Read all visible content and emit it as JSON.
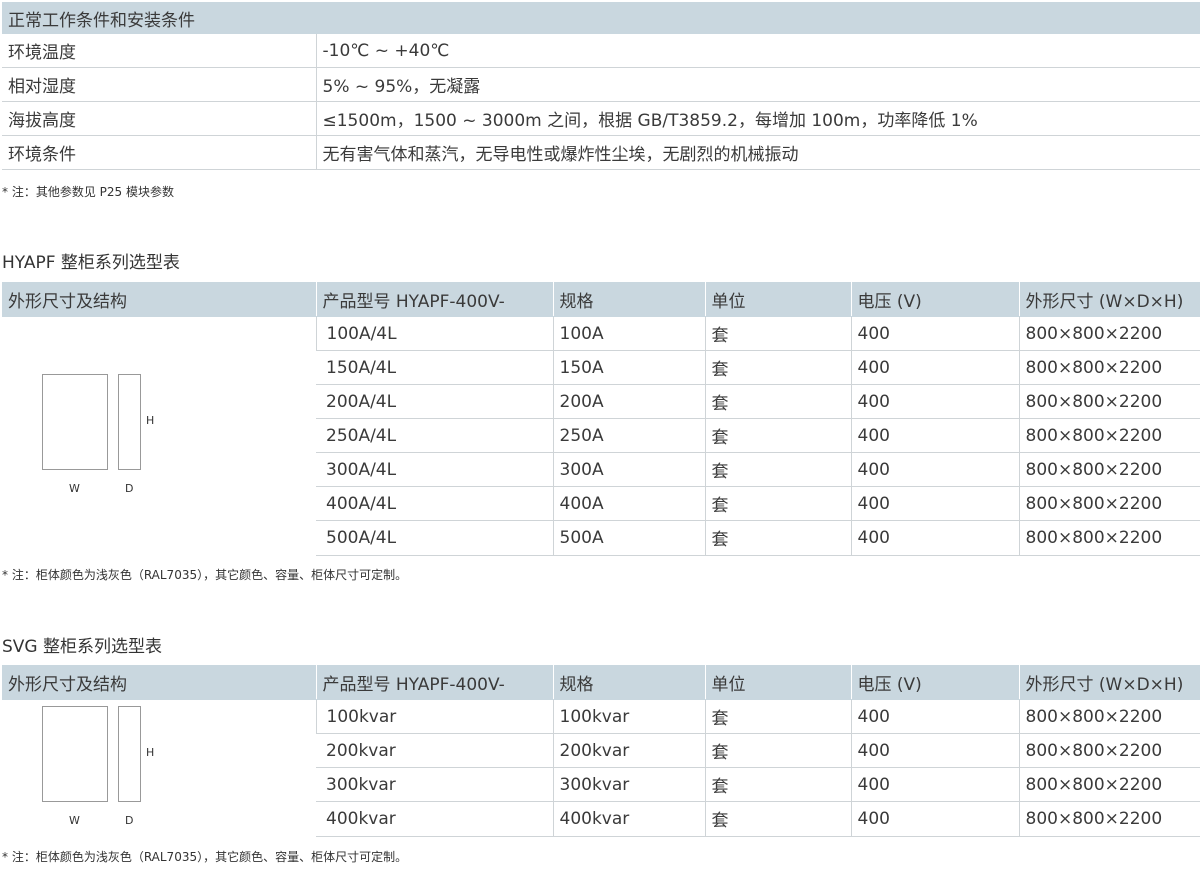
{
  "conditions": {
    "title": "正常工作条件和安装条件",
    "rows": [
      {
        "k": "环境温度",
        "v": "-10℃ ~ +40℃"
      },
      {
        "k": "相对湿度",
        "v": "5% ~ 95%，无凝露"
      },
      {
        "k": "海拔高度",
        "v": "≤1500m，1500 ~ 3000m 之间，根据 GB/T3859.2，每增加 100m，功率降低 1%"
      },
      {
        "k": "环境条件",
        "v": "无有害气体和蒸汽，无导电性或爆炸性尘埃，无剧烈的机械振动"
      }
    ],
    "note": "* 注：其他参数见 P25 模块参数"
  },
  "hyapf": {
    "title": "HYAPF 整柜系列选型表",
    "headers": [
      "外形尺寸及结构",
      "产品型号 HYAPF-400V-",
      "规格",
      "单位",
      "电压 (V)",
      "外形尺寸 (W×D×H)"
    ],
    "fig": {
      "w": "W",
      "d": "D",
      "h": "H"
    },
    "rows": [
      [
        "100A/4L",
        "100A",
        "套",
        "400",
        "800×800×2200"
      ],
      [
        "150A/4L",
        "150A",
        "套",
        "400",
        "800×800×2200"
      ],
      [
        "200A/4L",
        "200A",
        "套",
        "400",
        "800×800×2200"
      ],
      [
        "250A/4L",
        "250A",
        "套",
        "400",
        "800×800×2200"
      ],
      [
        "300A/4L",
        "300A",
        "套",
        "400",
        "800×800×2200"
      ],
      [
        "400A/4L",
        "400A",
        "套",
        "400",
        "800×800×2200"
      ],
      [
        "500A/4L",
        "500A",
        "套",
        "400",
        "800×800×2200"
      ]
    ],
    "note": "* 注：柜体颜色为浅灰色（RAL7035），其它颜色、容量、柜体尺寸可定制。"
  },
  "svg": {
    "title": "SVG 整柜系列选型表",
    "headers": [
      "外形尺寸及结构",
      "产品型号 HYAPF-400V-",
      "规格",
      "单位",
      "电压 (V)",
      "外形尺寸 (W×D×H)"
    ],
    "fig": {
      "w": "W",
      "d": "D",
      "h": "H"
    },
    "rows": [
      [
        "100kvar",
        "100kvar",
        "套",
        "400",
        "800×800×2200"
      ],
      [
        "200kvar",
        "200kvar",
        "套",
        "400",
        "800×800×2200"
      ],
      [
        "300kvar",
        "300kvar",
        "套",
        "400",
        "800×800×2200"
      ],
      [
        "400kvar",
        "400kvar",
        "套",
        "400",
        "800×800×2200"
      ]
    ],
    "note": "* 注：柜体颜色为浅灰色（RAL7035），其它颜色、容量、柜体尺寸可定制。"
  }
}
